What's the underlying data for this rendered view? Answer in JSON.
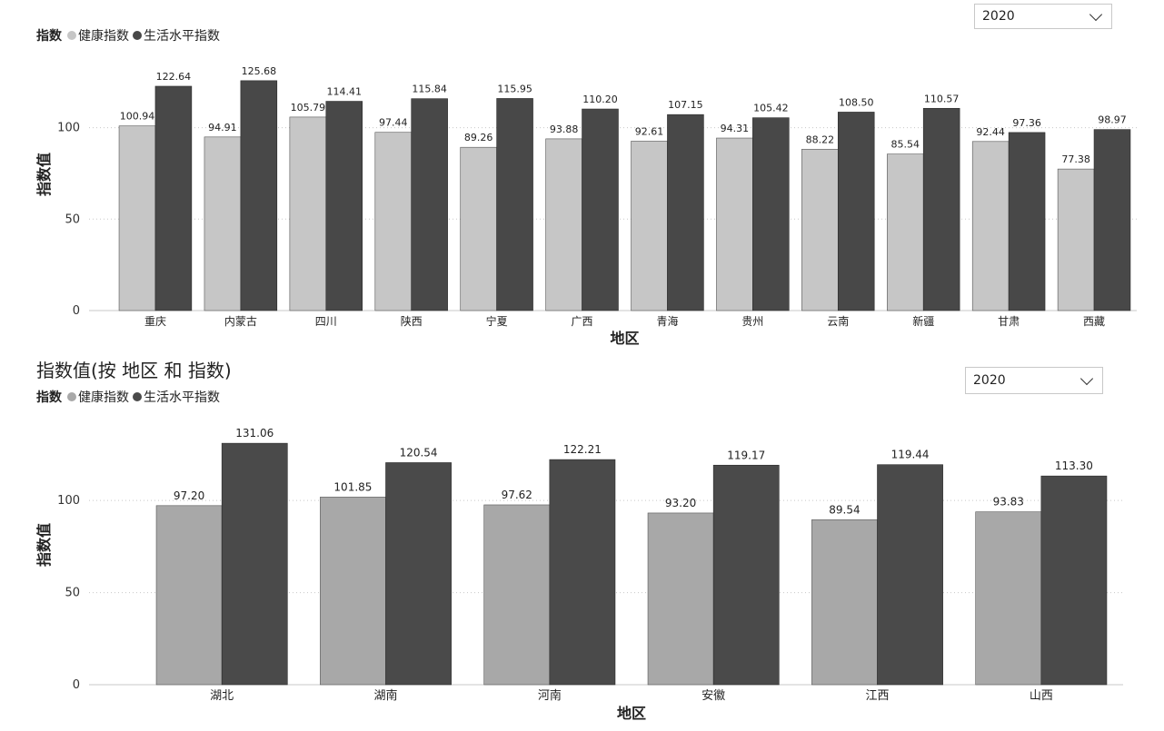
{
  "legend": {
    "title": "指数",
    "series_names": [
      "健康指数",
      "生活水平指数"
    ]
  },
  "chart_data": [
    {
      "type": "bar",
      "title": "",
      "xlabel": "地区",
      "ylabel": "指数值",
      "ylim": [
        0,
        140
      ],
      "yticks": [
        0,
        50,
        100
      ],
      "grid": true,
      "legend_position": "top-left",
      "year_filter": "2020",
      "categories": [
        "重庆",
        "内蒙古",
        "四川",
        "陕西",
        "宁夏",
        "广西",
        "青海",
        "贵州",
        "云南",
        "新疆",
        "甘肃",
        "西藏"
      ],
      "series": [
        {
          "name": "健康指数",
          "color": "#c6c6c6",
          "values": [
            100.94,
            94.91,
            105.79,
            97.44,
            89.26,
            93.88,
            92.61,
            94.31,
            88.22,
            85.54,
            92.44,
            77.38
          ]
        },
        {
          "name": "生活水平指数",
          "color": "#484848",
          "values": [
            122.64,
            125.68,
            114.41,
            115.84,
            115.95,
            110.2,
            107.15,
            105.42,
            108.5,
            110.57,
            97.36,
            98.97
          ]
        }
      ]
    },
    {
      "type": "bar",
      "title": "指数值(按 地区 和 指数)",
      "xlabel": "地区",
      "ylabel": "指数值",
      "ylim": [
        0,
        140
      ],
      "yticks": [
        0,
        50,
        100
      ],
      "grid": true,
      "legend_position": "top-left",
      "year_filter": "2020",
      "categories": [
        "湖北",
        "湖南",
        "河南",
        "安徽",
        "江西",
        "山西"
      ],
      "series": [
        {
          "name": "健康指数",
          "color": "#a8a8a8",
          "values": [
            97.2,
            101.85,
            97.62,
            93.2,
            89.54,
            93.83
          ]
        },
        {
          "name": "生活水平指数",
          "color": "#4a4a4a",
          "values": [
            131.06,
            120.54,
            122.21,
            119.17,
            119.44,
            113.3
          ]
        }
      ]
    }
  ]
}
